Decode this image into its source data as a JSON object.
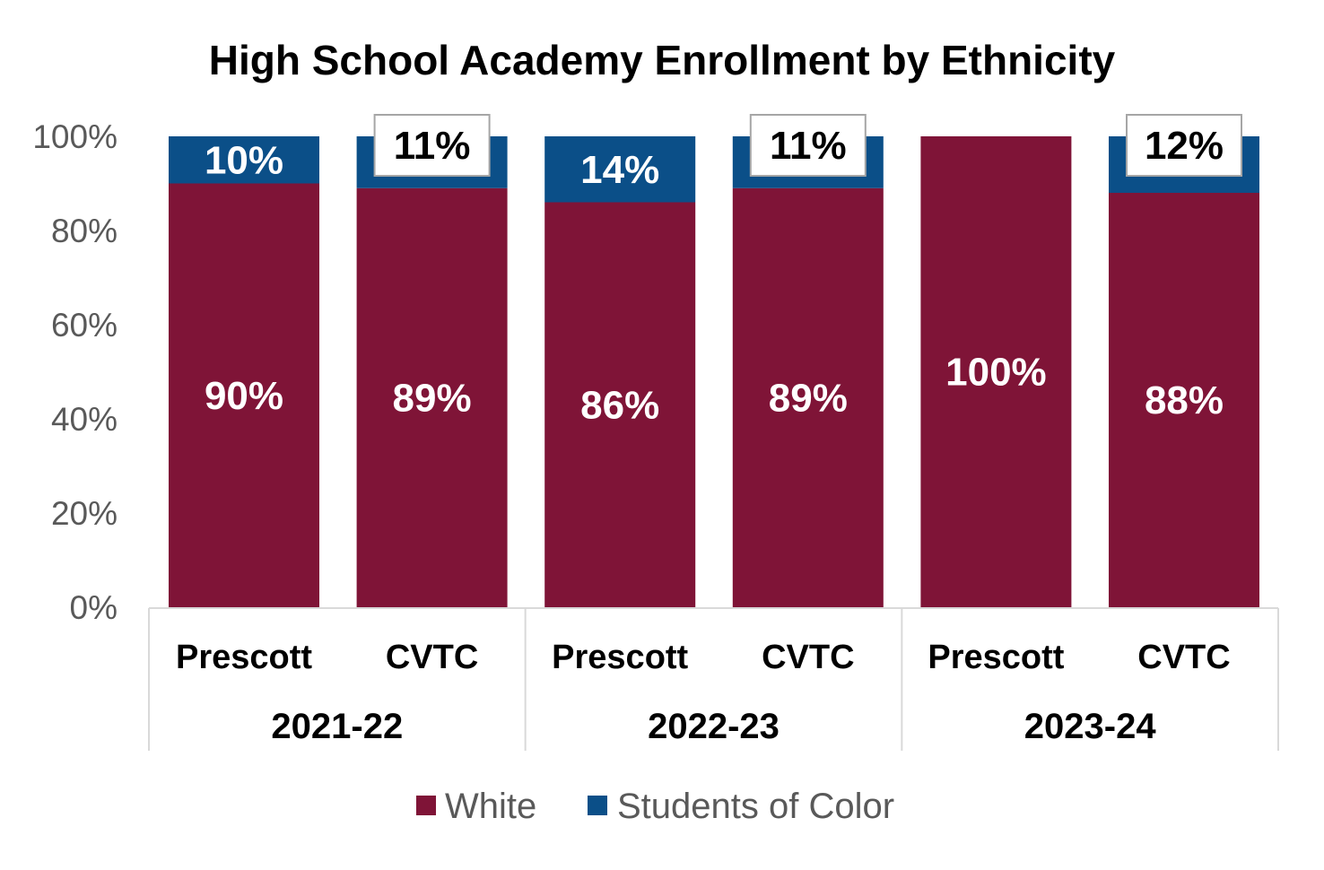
{
  "chart_data": {
    "type": "bar",
    "stacked": true,
    "title": "High School Academy Enrollment by Ethnicity",
    "xlabel": "",
    "ylabel": "",
    "ylim": [
      0,
      100
    ],
    "y_ticks": [
      "0%",
      "20%",
      "40%",
      "60%",
      "80%",
      "100%"
    ],
    "grid": false,
    "legend_position": "bottom",
    "groups": [
      {
        "label": "2021-22",
        "categories": [
          "Prescott",
          "CVTC"
        ]
      },
      {
        "label": "2022-23",
        "categories": [
          "Prescott",
          "CVTC"
        ]
      },
      {
        "label": "2023-24",
        "categories": [
          "Prescott",
          "CVTC"
        ]
      }
    ],
    "categories": [
      "Prescott",
      "CVTC",
      "Prescott",
      "CVTC",
      "Prescott",
      "CVTC"
    ],
    "series": [
      {
        "name": "White",
        "color": "#7f1437",
        "values": [
          90,
          89,
          86,
          89,
          100,
          88
        ],
        "labels": [
          "90%",
          "89%",
          "86%",
          "89%",
          "100%",
          "88%"
        ]
      },
      {
        "name": "Students of Color",
        "color": "#0b4f88",
        "values": [
          10,
          11,
          14,
          11,
          0,
          12
        ],
        "labels": [
          "10%",
          "11%",
          "14%",
          "11%",
          "",
          "12%"
        ],
        "boxed_label": [
          false,
          true,
          false,
          true,
          false,
          true
        ]
      }
    ]
  }
}
